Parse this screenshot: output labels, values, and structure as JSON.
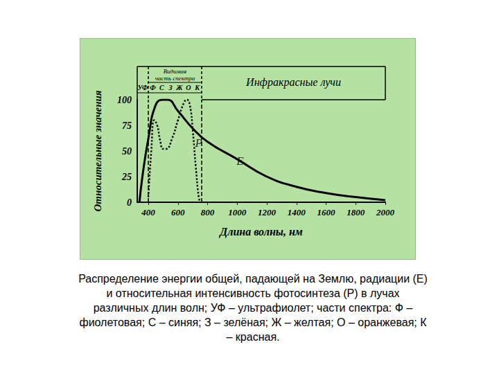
{
  "chart_data": {
    "type": "line",
    "caption": [
      "Распределение энергии общей, падающей на Землю, радиации (E)",
      "и относительная интенсивность фотосинтеза (P) в лучах",
      "различных длин волн; УФ – ультрафиолет; части спектра: Ф –",
      "фиолетовая; С – синяя; З – зелёная; Ж – желтая; О – оранжевая; К",
      "– красная."
    ],
    "x_label": "Длина волны, нм",
    "y_label": "Относительные значения",
    "xlim": [
      325,
      2000
    ],
    "xticks": [
      400,
      600,
      800,
      1000,
      1200,
      1400,
      1600,
      1800,
      2000
    ],
    "ylim": [
      0,
      100
    ],
    "yticks": [
      0,
      25,
      50,
      75,
      100
    ],
    "grid": false,
    "series": [
      {
        "color": "#000000",
        "line_style": "solid",
        "x": [
          340,
          360,
          400,
          450,
          500,
          530,
          600,
          700,
          800,
          1000,
          1200,
          1400,
          1600,
          1800,
          2000
        ],
        "values": [
          0,
          25,
          62,
          95,
          100,
          100,
          89,
          72,
          59,
          42,
          25,
          15,
          9,
          5,
          2
        ]
      },
      {
        "color": "#000000",
        "line_style": "dotted",
        "x": [
          400,
          420,
          440,
          460,
          480,
          500,
          520,
          560,
          600,
          640,
          660,
          680,
          700,
          720,
          740,
          750
        ],
        "values": [
          5,
          50,
          80,
          75,
          60,
          52,
          52,
          62,
          80,
          97,
          100,
          95,
          70,
          35,
          5,
          0
        ]
      }
    ],
    "spectrum": {
      "visible_title": [
        "Видимая",
        "часть спектра"
      ],
      "visible_range": [
        400,
        760
      ],
      "uv_band": "УФ",
      "bands": [
        "Ф",
        "С",
        "З",
        "Ж",
        "О",
        "К"
      ],
      "infrared": "Инфракрасные лучи"
    },
    "annotations": [
      {
        "text": "E",
        "x": 1020,
        "y": 40
      },
      {
        "text": "P",
        "x": 740,
        "y": 58
      }
    ]
  }
}
